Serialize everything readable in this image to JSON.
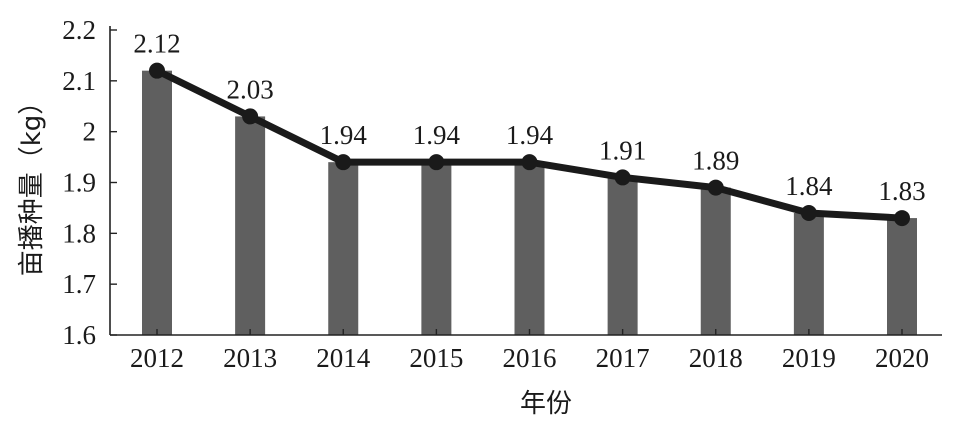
{
  "chart_data": {
    "type": "bar",
    "categories": [
      "2012",
      "2013",
      "2014",
      "2015",
      "2016",
      "2017",
      "2018",
      "2019",
      "2020"
    ],
    "values": [
      2.12,
      2.03,
      1.94,
      1.94,
      1.94,
      1.91,
      1.89,
      1.84,
      1.83
    ],
    "data_labels": [
      "2.12",
      "2.03",
      "1.94",
      "1.94",
      "1.94",
      "1.91",
      "1.89",
      "1.84",
      "1.83"
    ],
    "overlay_line": true,
    "xlabel": "年份",
    "ylabel": "亩播种量（kg）",
    "ylim": [
      1.6,
      2.2
    ],
    "yticks": [
      "1.6",
      "1.7",
      "1.8",
      "1.9",
      "2",
      "2.1",
      "2.2"
    ],
    "grid": false,
    "colors": {
      "bar": "#5f5f5f",
      "line": "#1a1a1a",
      "axis": "#222222"
    }
  }
}
